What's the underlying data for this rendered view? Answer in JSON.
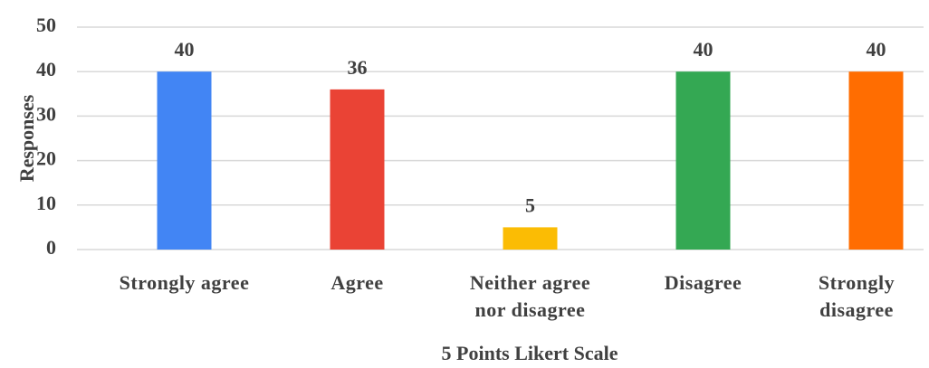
{
  "chart_data": {
    "type": "bar",
    "x_label": "5 Points Likert Scale",
    "y_label": "Responses",
    "categories": [
      "Strongly agree",
      "Agree",
      "Neither agree nor disagree",
      "Disagree",
      "Strongly disagree"
    ],
    "values": [
      40,
      36,
      5,
      40,
      40
    ],
    "colors": [
      "#4285f4",
      "#ea4335",
      "#fbbc04",
      "#34a853",
      "#ff6d01"
    ],
    "ylim": [
      0,
      50
    ],
    "yticks": [
      0,
      10,
      20,
      30,
      40,
      50
    ],
    "grid": true
  }
}
